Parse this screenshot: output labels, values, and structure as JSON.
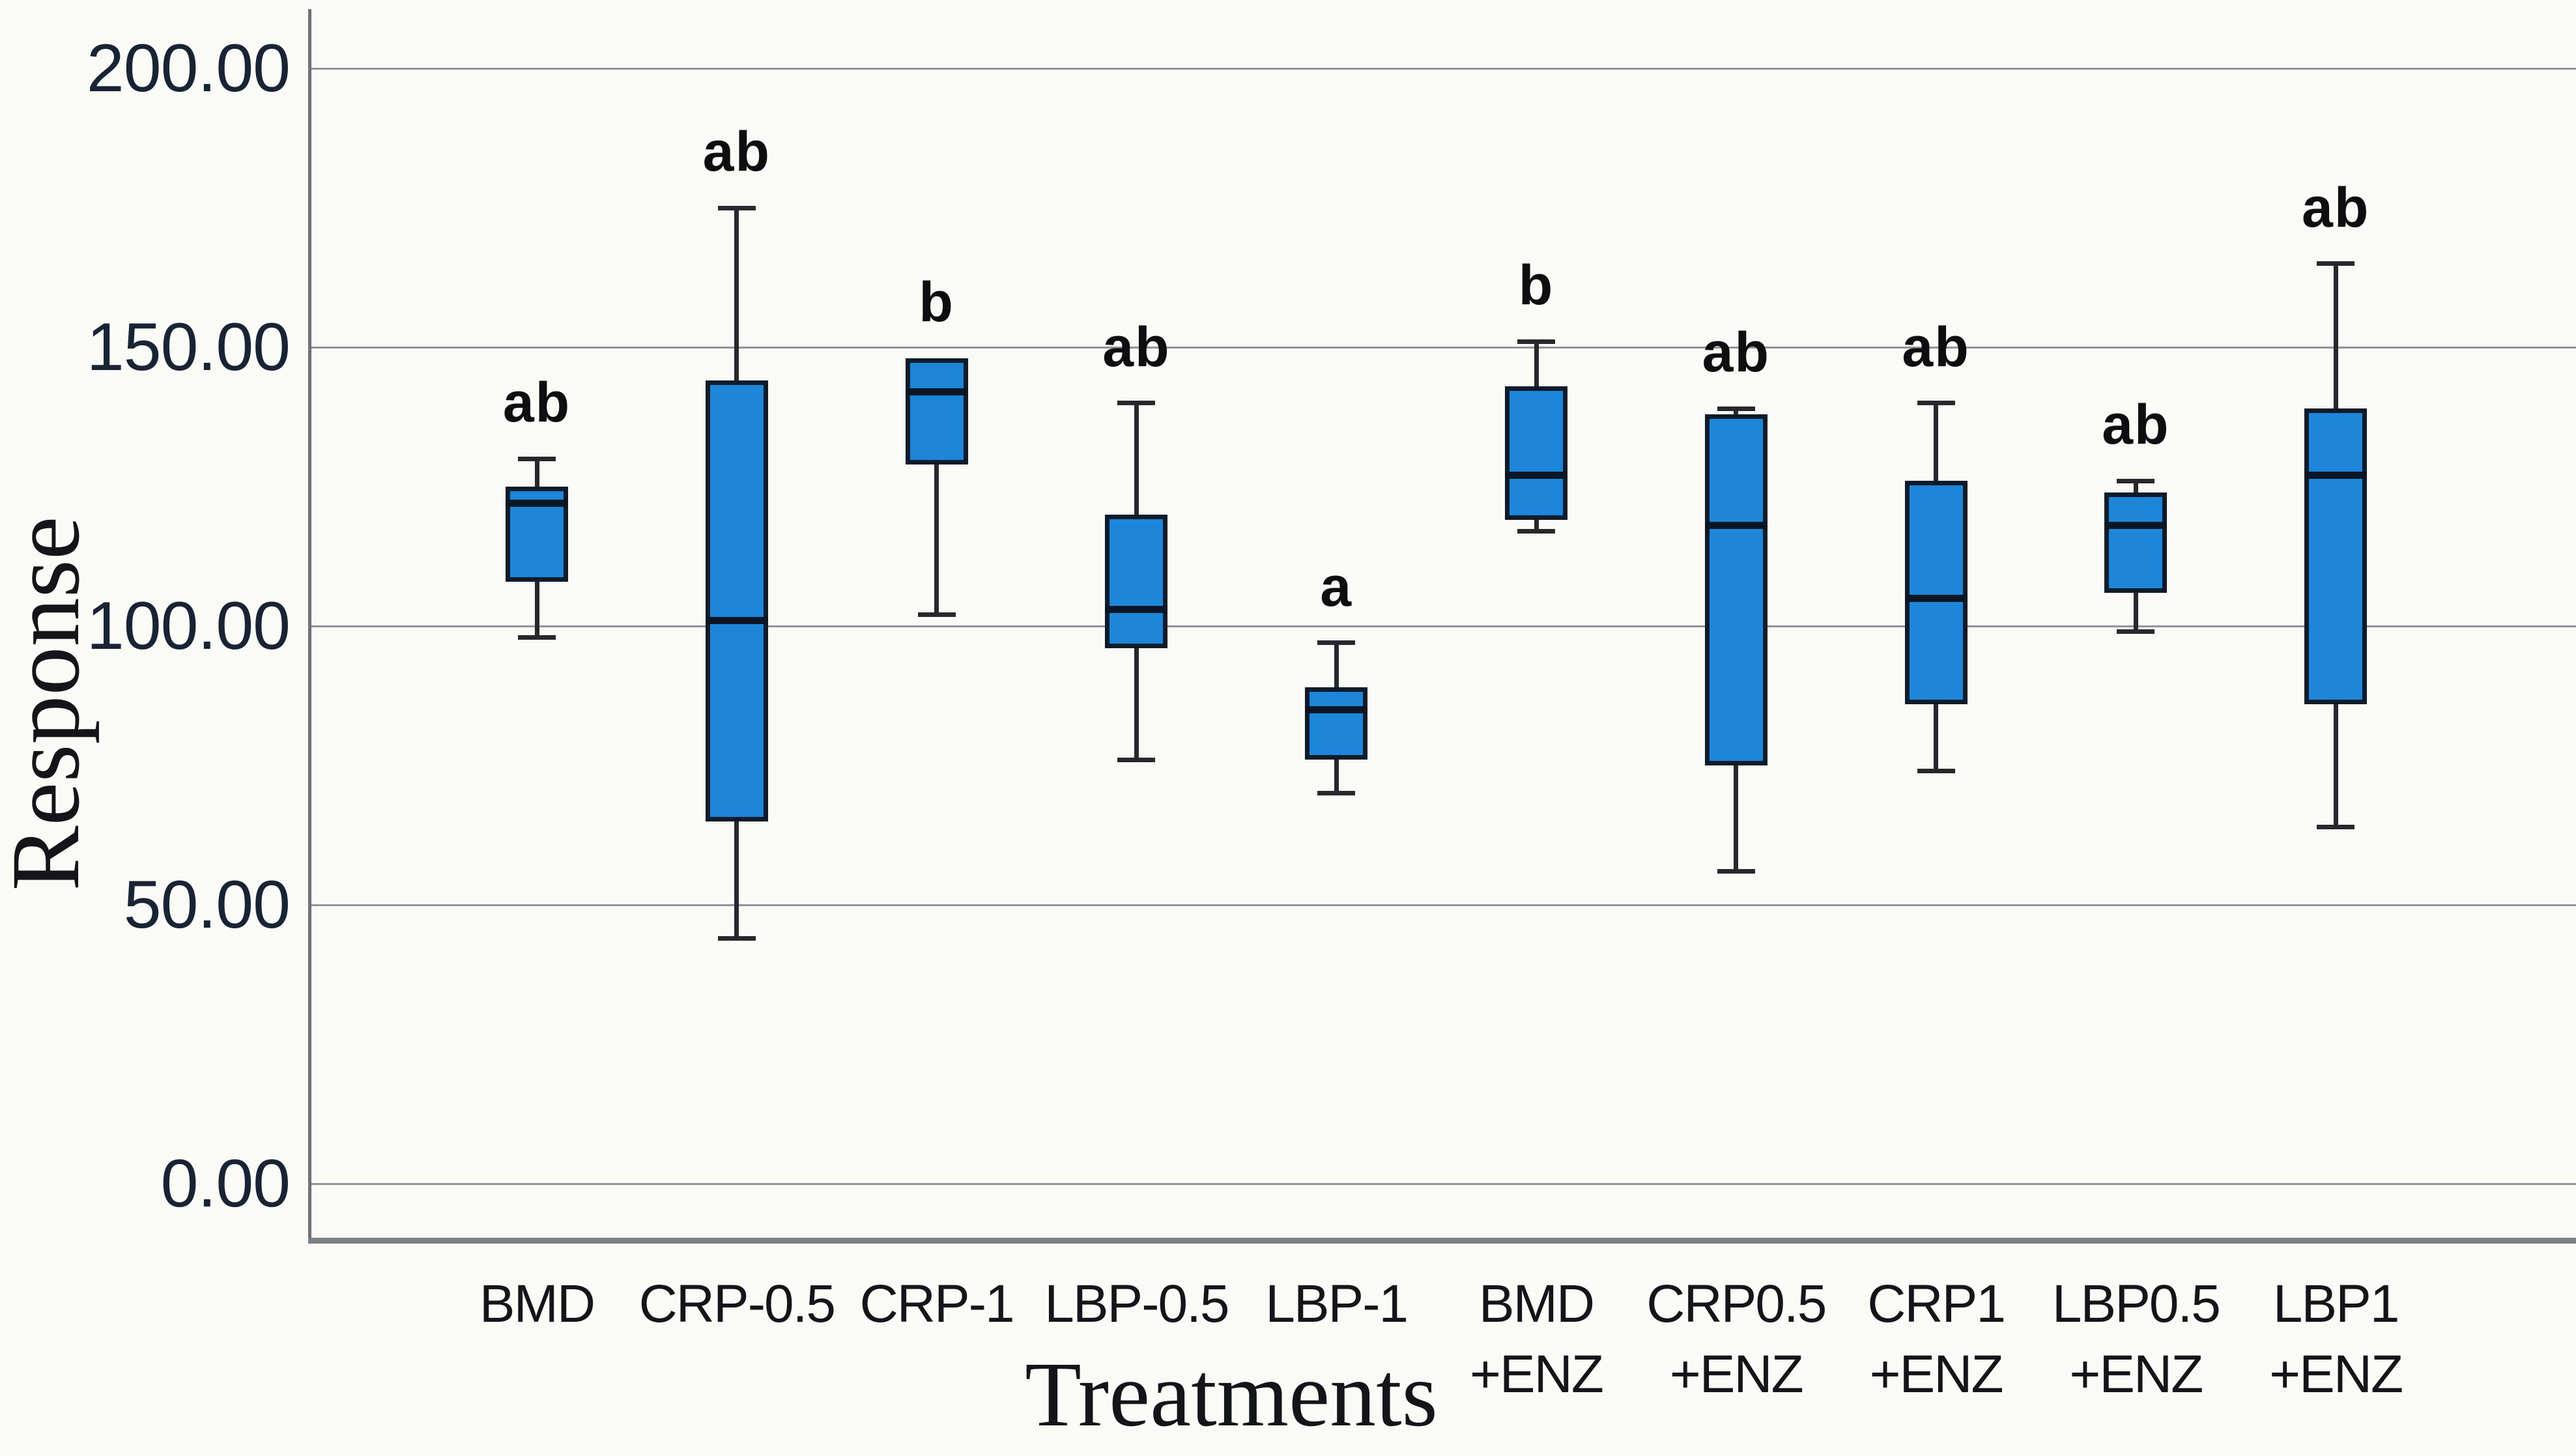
{
  "palette": {
    "background": "#fafaf7",
    "box_fill": "#1e86d8",
    "box_border": "#0d1b2b",
    "median_color": "#0a1623",
    "whisker_color": "#26282b",
    "grid_color": "#909499",
    "axis_color": "#6e7276",
    "bottom_axis_color": "#7b8084",
    "tick_text_color": "#182433",
    "label_text_color": "#131519",
    "letter_text_color": "#0d0e10"
  },
  "chart_data": {
    "type": "boxplot",
    "title": "",
    "xlabel": "Treatments",
    "ylabel": "Response",
    "ylim": [
      0,
      212
    ],
    "grid": "horizontal",
    "legend": "none",
    "yticks": [
      {
        "label": "200.00",
        "value": 200
      },
      {
        "label": "150.00",
        "value": 150
      },
      {
        "label": "100.00",
        "value": 100
      },
      {
        "label": "50.00",
        "value": 50
      },
      {
        "label": "0.00",
        "value": 0
      }
    ],
    "categories": [
      {
        "line1": "BMD",
        "line2": ""
      },
      {
        "line1": "CRP-0.5",
        "line2": ""
      },
      {
        "line1": "CRP-1",
        "line2": ""
      },
      {
        "line1": "LBP-0.5",
        "line2": ""
      },
      {
        "line1": "LBP-1",
        "line2": ""
      },
      {
        "line1": "BMD",
        "line2": "+ENZ"
      },
      {
        "line1": "CRP0.5",
        "line2": "+ENZ"
      },
      {
        "line1": "CRP1",
        "line2": "+ENZ"
      },
      {
        "line1": "LBP0.5",
        "line2": "+ENZ"
      },
      {
        "line1": "LBP1",
        "line2": "+ENZ"
      }
    ],
    "series": [
      {
        "name": "BMD",
        "letter": "ab",
        "min": 98,
        "q1": 108,
        "median": 122,
        "q3": 125,
        "max": 130
      },
      {
        "name": "CRP-0.5",
        "letter": "ab",
        "min": 44,
        "q1": 65,
        "median": 101,
        "q3": 144,
        "max": 175
      },
      {
        "name": "CRP-1",
        "letter": "b",
        "min": 102,
        "q1": 129,
        "median": 142,
        "q3": 148,
        "max": 148
      },
      {
        "name": "LBP-0.5",
        "letter": "ab",
        "min": 76,
        "q1": 96,
        "median": 103,
        "q3": 120,
        "max": 140
      },
      {
        "name": "LBP-1",
        "letter": "a",
        "min": 70,
        "q1": 76,
        "median": 85,
        "q3": 89,
        "max": 97
      },
      {
        "name": "BMD+ENZ",
        "letter": "b",
        "min": 117,
        "q1": 119,
        "median": 127,
        "q3": 143,
        "max": 151
      },
      {
        "name": "CRP0.5+ENZ",
        "letter": "ab",
        "min": 56,
        "q1": 75,
        "median": 118,
        "q3": 138,
        "max": 139
      },
      {
        "name": "CRP1+ENZ",
        "letter": "ab",
        "min": 74,
        "q1": 86,
        "median": 105,
        "q3": 126,
        "max": 140
      },
      {
        "name": "LBP0.5+ENZ",
        "letter": "ab",
        "min": 99,
        "q1": 106,
        "median": 118,
        "q3": 124,
        "max": 126
      },
      {
        "name": "LBP1+ENZ",
        "letter": "ab",
        "min": 64,
        "q1": 86,
        "median": 127,
        "q3": 139,
        "max": 165
      }
    ]
  }
}
